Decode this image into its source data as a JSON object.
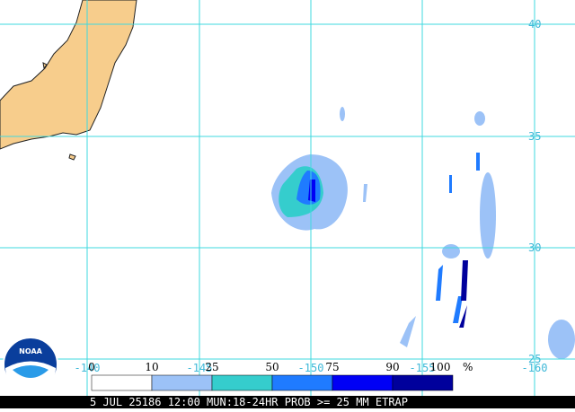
{
  "map": {
    "lat_labels": [
      "40",
      "35",
      "30",
      "25"
    ],
    "lon_labels": [
      "-140",
      "-145",
      "-150",
      "-155",
      "-160"
    ]
  },
  "legend": {
    "labels": [
      "0",
      "10",
      "25",
      "50",
      "75",
      "90",
      "100"
    ],
    "unit": "%",
    "colors": [
      "#ffffff",
      "#9cc2f7",
      "#35cdcd",
      "#1f7bff",
      "#0000f5",
      "#00009c"
    ]
  },
  "footer": "5 JUL 25186 12:00 MUN:18-24HR PROB >= 25 MM ETRAP",
  "logo": "NOAA"
}
